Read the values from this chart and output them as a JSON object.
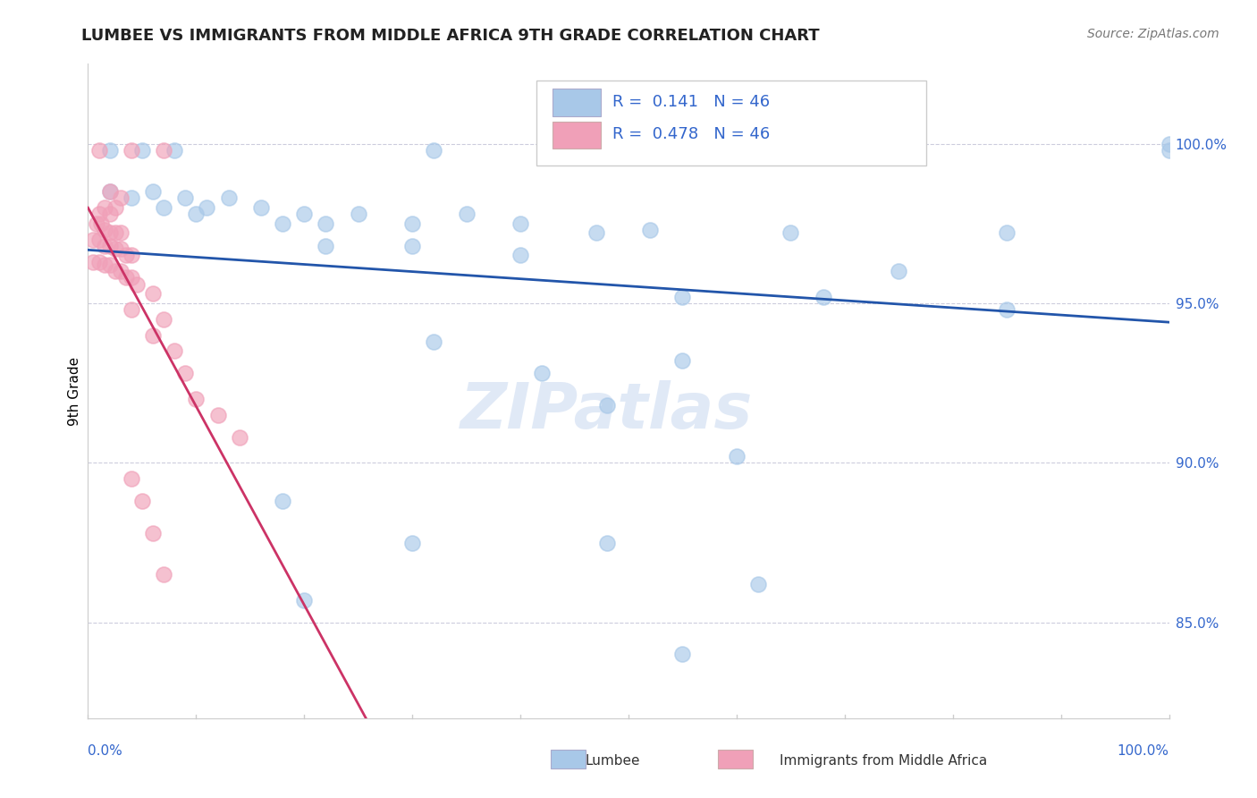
{
  "title": "LUMBEE VS IMMIGRANTS FROM MIDDLE AFRICA 9TH GRADE CORRELATION CHART",
  "source": "Source: ZipAtlas.com",
  "ylabel": "9th Grade",
  "xlim": [
    0.0,
    1.0
  ],
  "ylim": [
    0.82,
    1.025
  ],
  "yticks": [
    0.85,
    0.9,
    0.95,
    1.0
  ],
  "ytick_labels": [
    "85.0%",
    "90.0%",
    "95.0%",
    "100.0%"
  ],
  "R_blue": 0.141,
  "R_pink": 0.478,
  "N": 46,
  "blue_color": "#a8c8e8",
  "pink_color": "#f0a0b8",
  "line_blue": "#2255aa",
  "line_pink": "#cc3366",
  "legend_label_blue": "Lumbee",
  "legend_label_pink": "Immigrants from Middle Africa",
  "blue_scatter": [
    [
      0.02,
      0.998
    ],
    [
      0.05,
      0.998
    ],
    [
      0.08,
      0.998
    ],
    [
      0.32,
      0.998
    ],
    [
      0.58,
      0.998
    ],
    [
      0.75,
      0.998
    ],
    [
      1.0,
      0.998
    ],
    [
      0.02,
      0.985
    ],
    [
      0.04,
      0.983
    ],
    [
      0.06,
      0.985
    ],
    [
      0.07,
      0.98
    ],
    [
      0.09,
      0.983
    ],
    [
      0.1,
      0.978
    ],
    [
      0.11,
      0.98
    ],
    [
      0.13,
      0.983
    ],
    [
      0.16,
      0.98
    ],
    [
      0.18,
      0.975
    ],
    [
      0.2,
      0.978
    ],
    [
      0.22,
      0.975
    ],
    [
      0.25,
      0.978
    ],
    [
      0.3,
      0.975
    ],
    [
      0.35,
      0.978
    ],
    [
      0.4,
      0.975
    ],
    [
      0.47,
      0.972
    ],
    [
      0.52,
      0.973
    ],
    [
      0.65,
      0.972
    ],
    [
      0.85,
      0.972
    ],
    [
      0.22,
      0.968
    ],
    [
      0.3,
      0.968
    ],
    [
      0.4,
      0.965
    ],
    [
      0.55,
      0.952
    ],
    [
      0.68,
      0.952
    ],
    [
      0.85,
      0.948
    ],
    [
      0.32,
      0.938
    ],
    [
      0.42,
      0.928
    ],
    [
      0.48,
      0.918
    ],
    [
      0.55,
      0.932
    ],
    [
      0.6,
      0.902
    ],
    [
      0.18,
      0.888
    ],
    [
      0.3,
      0.875
    ],
    [
      0.48,
      0.875
    ],
    [
      0.62,
      0.862
    ],
    [
      0.2,
      0.857
    ],
    [
      0.55,
      0.84
    ],
    [
      1.0,
      1.0
    ],
    [
      0.75,
      0.96
    ]
  ],
  "pink_scatter": [
    [
      0.01,
      0.998
    ],
    [
      0.04,
      0.998
    ],
    [
      0.07,
      0.998
    ],
    [
      0.02,
      0.985
    ],
    [
      0.03,
      0.983
    ],
    [
      0.015,
      0.98
    ],
    [
      0.025,
      0.98
    ],
    [
      0.01,
      0.978
    ],
    [
      0.02,
      0.978
    ],
    [
      0.008,
      0.975
    ],
    [
      0.012,
      0.975
    ],
    [
      0.015,
      0.973
    ],
    [
      0.02,
      0.972
    ],
    [
      0.025,
      0.972
    ],
    [
      0.03,
      0.972
    ],
    [
      0.005,
      0.97
    ],
    [
      0.01,
      0.97
    ],
    [
      0.015,
      0.968
    ],
    [
      0.02,
      0.968
    ],
    [
      0.025,
      0.967
    ],
    [
      0.03,
      0.967
    ],
    [
      0.035,
      0.965
    ],
    [
      0.04,
      0.965
    ],
    [
      0.005,
      0.963
    ],
    [
      0.01,
      0.963
    ],
    [
      0.015,
      0.962
    ],
    [
      0.02,
      0.962
    ],
    [
      0.025,
      0.96
    ],
    [
      0.03,
      0.96
    ],
    [
      0.035,
      0.958
    ],
    [
      0.04,
      0.958
    ],
    [
      0.045,
      0.956
    ],
    [
      0.06,
      0.953
    ],
    [
      0.04,
      0.948
    ],
    [
      0.07,
      0.945
    ],
    [
      0.06,
      0.94
    ],
    [
      0.08,
      0.935
    ],
    [
      0.09,
      0.928
    ],
    [
      0.1,
      0.92
    ],
    [
      0.12,
      0.915
    ],
    [
      0.14,
      0.908
    ],
    [
      0.04,
      0.895
    ],
    [
      0.05,
      0.888
    ],
    [
      0.06,
      0.878
    ],
    [
      0.07,
      0.865
    ]
  ]
}
